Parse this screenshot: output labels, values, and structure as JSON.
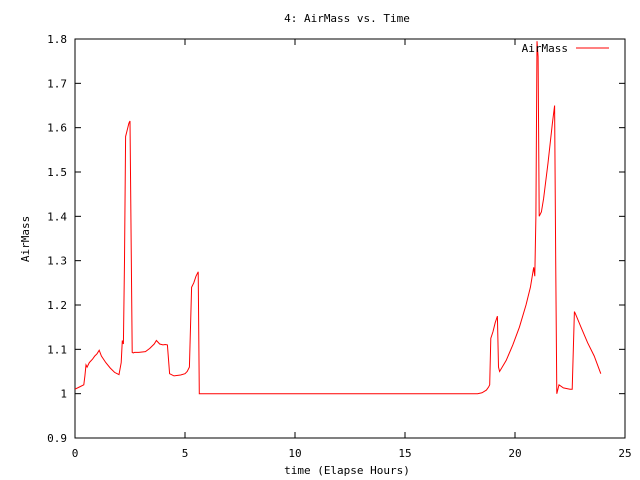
{
  "chart_data": {
    "type": "line",
    "title": "4: AirMass vs. Time",
    "xlabel": "time (Elapse Hours)",
    "ylabel": "AirMass",
    "xlim": [
      0,
      25
    ],
    "ylim": [
      0.9,
      1.8
    ],
    "xticks": [
      0,
      5,
      10,
      15,
      20,
      25
    ],
    "xtick_labels": [
      "0",
      "5",
      "10",
      "15",
      "20",
      "25"
    ],
    "yticks": [
      0.9,
      1.0,
      1.1,
      1.2,
      1.3,
      1.4,
      1.5,
      1.6,
      1.7,
      1.8
    ],
    "ytick_labels": [
      "0.9",
      "1",
      "1.1",
      "1.2",
      "1.3",
      "1.4",
      "1.5",
      "1.6",
      "1.7",
      "1.8"
    ],
    "grid": false,
    "legend_position": "top-right",
    "series": [
      {
        "name": "AirMass",
        "color": "#ff0000",
        "x": [
          0.0,
          0.2,
          0.4,
          0.45,
          0.5,
          0.55,
          0.65,
          0.8,
          0.9,
          1.0,
          1.1,
          1.2,
          1.4,
          1.6,
          1.8,
          2.0,
          2.1,
          2.15,
          2.2,
          2.25,
          2.3,
          2.35,
          2.45,
          2.5,
          2.6,
          2.65,
          2.7,
          2.9,
          3.2,
          3.4,
          3.6,
          3.7,
          3.85,
          4.0,
          4.1,
          4.2,
          4.3,
          4.5,
          4.8,
          5.0,
          5.1,
          5.2,
          5.3,
          5.4,
          5.5,
          5.6,
          5.65,
          5.7,
          6.0,
          8.0,
          10.0,
          12.0,
          14.0,
          16.0,
          18.0,
          18.3,
          18.5,
          18.7,
          18.8,
          18.85,
          18.9,
          19.0,
          19.1,
          19.2,
          19.25,
          19.3,
          19.6,
          19.9,
          20.2,
          20.5,
          20.7,
          20.8,
          20.85,
          20.9,
          20.95,
          21.0,
          21.05,
          21.1,
          21.2,
          21.3,
          21.5,
          21.7,
          21.8,
          21.85,
          21.9,
          22.0,
          22.2,
          22.5,
          22.6,
          22.7,
          22.75,
          23.0,
          23.3,
          23.6,
          23.9
        ],
        "y": [
          1.01,
          1.015,
          1.02,
          1.04,
          1.065,
          1.06,
          1.07,
          1.078,
          1.085,
          1.09,
          1.098,
          1.085,
          1.07,
          1.058,
          1.048,
          1.043,
          1.07,
          1.12,
          1.112,
          1.3,
          1.58,
          1.59,
          1.61,
          1.615,
          1.093,
          1.092,
          1.093,
          1.093,
          1.095,
          1.102,
          1.112,
          1.12,
          1.112,
          1.11,
          1.111,
          1.11,
          1.045,
          1.04,
          1.042,
          1.045,
          1.05,
          1.06,
          1.24,
          1.25,
          1.265,
          1.275,
          1.0,
          1.0,
          1.0,
          1.0,
          1.0,
          1.0,
          1.0,
          1.0,
          1.0,
          1.0,
          1.002,
          1.008,
          1.015,
          1.02,
          1.125,
          1.14,
          1.16,
          1.175,
          1.06,
          1.05,
          1.075,
          1.11,
          1.15,
          1.2,
          1.24,
          1.27,
          1.285,
          1.265,
          1.4,
          1.795,
          1.76,
          1.4,
          1.41,
          1.44,
          1.52,
          1.61,
          1.65,
          1.3,
          1.0,
          1.02,
          1.013,
          1.01,
          1.01,
          1.185,
          1.18,
          1.15,
          1.115,
          1.085,
          1.045
        ]
      }
    ]
  }
}
